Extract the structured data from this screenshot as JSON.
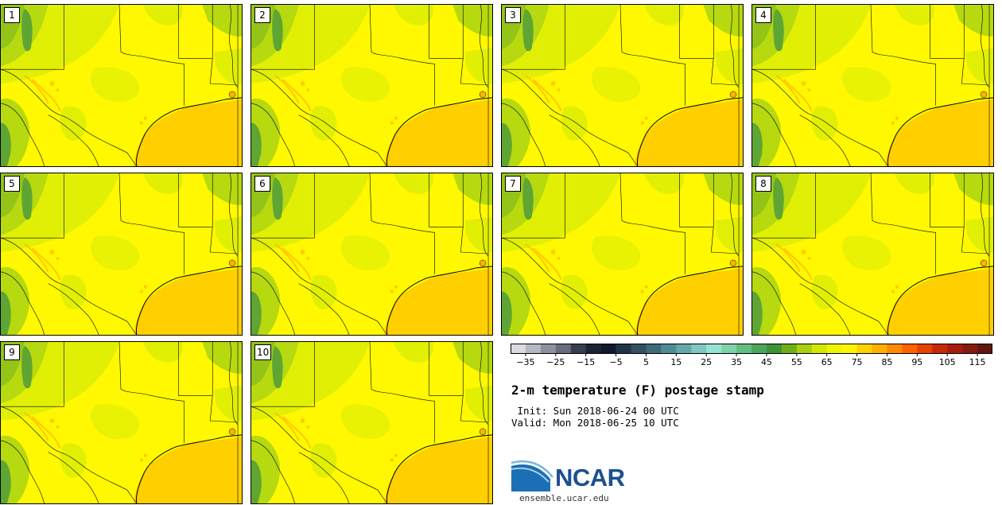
{
  "title": "2-m temperature (F) postage stamp",
  "init_line": " Init: Sun 2018-06-24 00 UTC",
  "valid_line": "Valid: Mon 2018-06-25 10 UTC",
  "members": [
    "1",
    "2",
    "3",
    "4",
    "5",
    "6",
    "7",
    "8",
    "9",
    "10"
  ],
  "colorbar": {
    "ticks": [
      "-35",
      "-25",
      "-15",
      "-5",
      "5",
      "15",
      "25",
      "35",
      "45",
      "55",
      "65",
      "75",
      "85",
      "95",
      "105",
      "115"
    ],
    "colors": [
      "#dadbe2",
      "#b6b8c3",
      "#8d909e",
      "#686d7d",
      "#363e50",
      "#1b2436",
      "#0e1a2b",
      "#1f3346",
      "#33505f",
      "#3d6b7a",
      "#4f8b94",
      "#65a8ab",
      "#80c7c3",
      "#96e2d6",
      "#7fd3aa",
      "#64be82",
      "#4ba65c",
      "#3d9335",
      "#70ad18",
      "#a8cf10",
      "#d4e605",
      "#ecf500",
      "#fff500",
      "#ffd200",
      "#ffb000",
      "#ff8a00",
      "#ff6300",
      "#e94100",
      "#c62a05",
      "#a71d0d",
      "#861a10",
      "#601510"
    ],
    "tick_values": [
      -35,
      -25,
      -15,
      -5,
      5,
      15,
      25,
      35,
      45,
      55,
      65,
      75,
      85,
      95,
      105,
      115
    ],
    "range": [
      -40,
      120
    ],
    "step": 5
  },
  "logo": {
    "text": "NCAR",
    "url": "ensemble.ucar.edu"
  },
  "map_colors": {
    "gulf": "#ffcf00",
    "warm_land": "#fff800",
    "mid_land": "#e1ef05",
    "cool_land": "#b6d90f",
    "cooler_land": "#93c417",
    "cold": "#5fa534",
    "hot_spots": "#ffb400"
  }
}
